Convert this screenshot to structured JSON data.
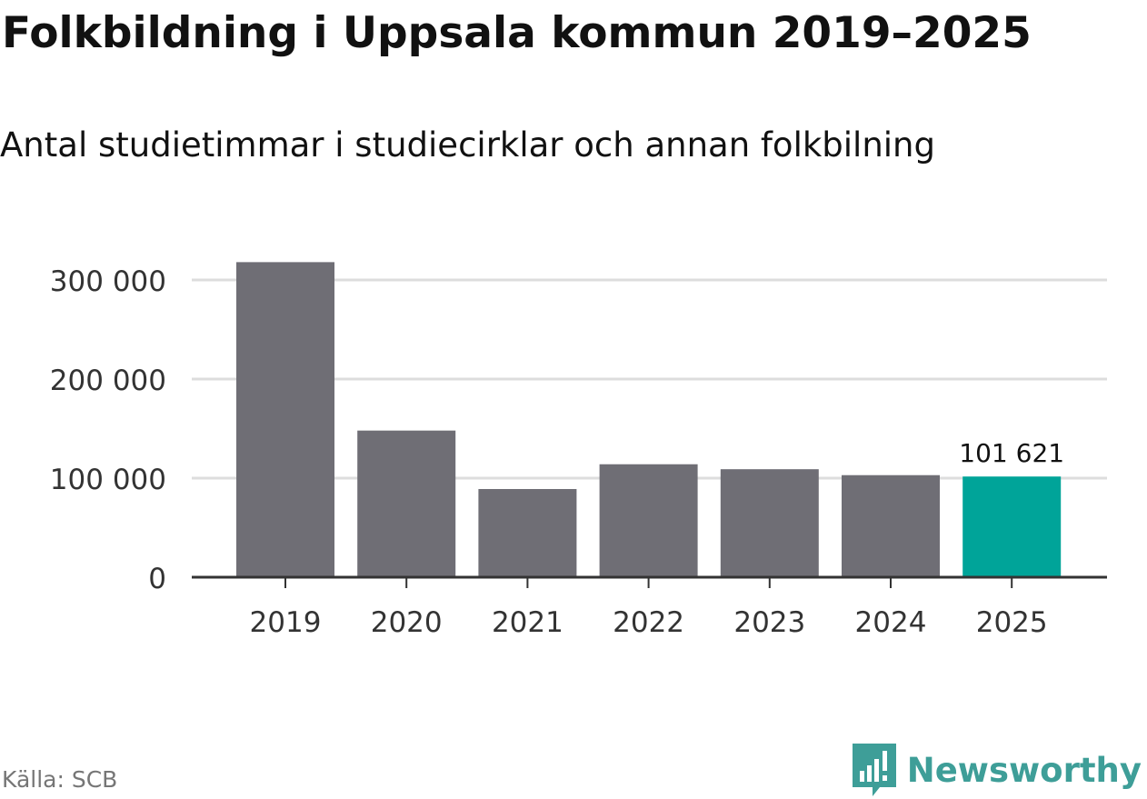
{
  "header": {
    "title": "Folkbildning i Uppsala kommun 2019–2025",
    "subtitle": "Antal studietimmar i studiecirklar och annan folkbilning"
  },
  "footer": {
    "source": "Källa: SCB",
    "brand": "Newsworthy"
  },
  "colors": {
    "bar": "#6f6e75",
    "highlight": "#00a499",
    "grid": "#dddddd",
    "axis": "#333333",
    "brand": "#3e9e98"
  },
  "chart_data": {
    "type": "bar",
    "title": "Folkbildning i Uppsala kommun 2019–2025",
    "subtitle": "Antal studietimmar i studiecirklar och annan folkbilning",
    "xlabel": "",
    "ylabel": "",
    "categories": [
      "2019",
      "2020",
      "2021",
      "2022",
      "2023",
      "2024",
      "2025"
    ],
    "values": [
      318000,
      148000,
      89000,
      114000,
      109000,
      103000,
      101621
    ],
    "highlight_index": 6,
    "data_labels": [
      {
        "category": "2025",
        "text": "101 621"
      }
    ],
    "ylim": [
      0,
      320000
    ],
    "yticks": [
      {
        "value": 0,
        "label": "0"
      },
      {
        "value": 100000,
        "label": "100 000"
      },
      {
        "value": 200000,
        "label": "200 000"
      },
      {
        "value": 300000,
        "label": "300 000"
      }
    ],
    "grid": true,
    "legend": "none"
  }
}
